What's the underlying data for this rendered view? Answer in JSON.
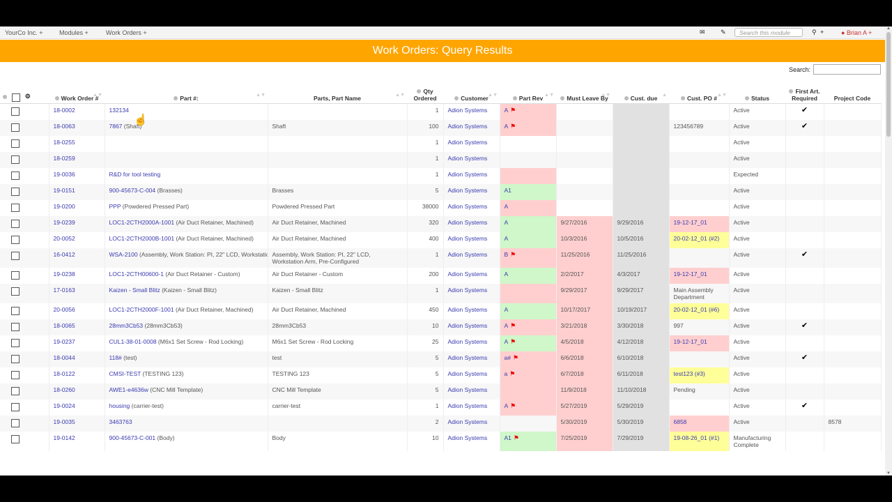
{
  "nav": {
    "company": "YourCo Inc. +",
    "modules": "Modules +",
    "work_orders": "Work Orders +",
    "search_placeholder": "Search this module",
    "search_plus": "+",
    "user": "Brian A +"
  },
  "banner": {
    "title": "Work Orders: Query Results"
  },
  "table_search": {
    "label": "Search:"
  },
  "headers": {
    "wo": "Work Order #",
    "part": "Part #:",
    "part_name": "Parts, Part Name",
    "qty": "Qty Ordered",
    "customer": "Customer",
    "part_rev": "Part Rev",
    "must_leave": "Must Leave By",
    "cust_due": "Cust. due",
    "cust_po": "Cust. PO #",
    "status": "Status",
    "first_art": "First Art. Required",
    "project": "Project Code"
  },
  "rows": [
    {
      "wo": "18-0002",
      "part": "132134",
      "part_desc": "",
      "part_name": "",
      "qty": "1",
      "customer": "Adion Systems",
      "rev": "A",
      "rev_flag": true,
      "rev_color": "red",
      "must": "",
      "due": "",
      "po": "",
      "po_link": false,
      "po_color": "",
      "status": "Active",
      "fa": "✔",
      "proj": ""
    },
    {
      "wo": "18-0063",
      "part": "7867",
      "part_desc": "(Shaft)",
      "part_name": "Shaft",
      "qty": "100",
      "customer": "Adion Systems",
      "rev": "A",
      "rev_flag": true,
      "rev_color": "red",
      "must": "",
      "due": "",
      "po": "123456789",
      "po_link": false,
      "po_color": "",
      "status": "Active",
      "fa": "✔",
      "proj": ""
    },
    {
      "wo": "18-0255",
      "part": "",
      "part_desc": "",
      "part_name": "",
      "qty": "1",
      "customer": "Adion Systems",
      "rev": "",
      "rev_flag": false,
      "rev_color": "",
      "must": "",
      "due": "",
      "po": "",
      "po_link": false,
      "po_color": "",
      "status": "Active",
      "fa": "",
      "proj": ""
    },
    {
      "wo": "18-0259",
      "part": "",
      "part_desc": "",
      "part_name": "",
      "qty": "1",
      "customer": "Adion Systems",
      "rev": "",
      "rev_flag": false,
      "rev_color": "",
      "must": "",
      "due": "",
      "po": "",
      "po_link": false,
      "po_color": "",
      "status": "Active",
      "fa": "",
      "proj": ""
    },
    {
      "wo": "19-0036",
      "part": "R&D for tool testing",
      "part_desc": "",
      "part_name": "",
      "qty": "1",
      "customer": "Adion Systems",
      "rev": "",
      "rev_flag": false,
      "rev_color": "red",
      "must": "",
      "due": "",
      "po": "",
      "po_link": false,
      "po_color": "",
      "status": "Expected",
      "fa": "",
      "proj": ""
    },
    {
      "wo": "19-0151",
      "part": "900-45673-C-004",
      "part_desc": "(Brasses)",
      "part_name": "Brasses",
      "qty": "5",
      "customer": "Adion Systems",
      "rev": "A1",
      "rev_flag": false,
      "rev_color": "green",
      "must": "",
      "due": "",
      "po": "",
      "po_link": false,
      "po_color": "",
      "status": "Active",
      "fa": "",
      "proj": ""
    },
    {
      "wo": "19-0200",
      "part": "PPP",
      "part_desc": "(Powdered Pressed Part)",
      "part_name": "Powdered Pressed Part",
      "qty": "38000",
      "customer": "Adion Systems",
      "rev": "A",
      "rev_flag": false,
      "rev_color": "red",
      "must": "",
      "due": "",
      "po": "",
      "po_link": false,
      "po_color": "",
      "status": "Active",
      "fa": "",
      "proj": ""
    },
    {
      "wo": "19-0239",
      "part": "LOC1-2CTH2000A-1001",
      "part_desc": "(Air Duct Retainer, Machined)",
      "part_name": "Air Duct Retainer, Machined",
      "qty": "320",
      "customer": "Adion Systems",
      "rev": "A",
      "rev_flag": false,
      "rev_color": "green",
      "must": "9/27/2016",
      "due": "9/29/2016",
      "po": "19-12-17_01",
      "po_link": true,
      "po_color": "red",
      "status": "Active",
      "fa": "",
      "proj": ""
    },
    {
      "wo": "20-0052",
      "part": "LOC1-2CTH2000B-1001",
      "part_desc": "(Air Duct Retainer, Machined)",
      "part_name": "Air Duct Retainer, Machined",
      "qty": "400",
      "customer": "Adion Systems",
      "rev": "A",
      "rev_flag": false,
      "rev_color": "green",
      "must": "10/3/2016",
      "due": "10/5/2016",
      "po": "20-02-12_01 (#2)",
      "po_link": true,
      "po_color": "yellow",
      "status": "Active",
      "fa": "",
      "proj": ""
    },
    {
      "wo": "16-0412",
      "part": "WSA-2100",
      "part_desc": "(Assembly, Work Station: PI, 22\" LCD, Workstation Arm, Pre-Configured)",
      "part_name": "Assembly, Work Station: PI, 22\" LCD, Workstation Arm, Pre-Configured",
      "qty": "1",
      "customer": "Adion Systems",
      "rev": "B",
      "rev_flag": true,
      "rev_color": "red",
      "must": "11/25/2016",
      "due": "11/25/2016",
      "po": "",
      "po_link": false,
      "po_color": "",
      "status": "Active",
      "fa": "✔",
      "proj": ""
    },
    {
      "wo": "19-0238",
      "part": "LOC1-2CTH00600-1",
      "part_desc": "(Air Duct Retainer - Custom)",
      "part_name": "Air Duct Retainer - Custom",
      "qty": "200",
      "customer": "Adion Systems",
      "rev": "A",
      "rev_flag": false,
      "rev_color": "green",
      "must": "2/2/2017",
      "due": "4/3/2017",
      "po": "19-12-17_01",
      "po_link": true,
      "po_color": "red",
      "status": "Active",
      "fa": "",
      "proj": ""
    },
    {
      "wo": "17-0163",
      "part": "Kaizen - Small Blitz",
      "part_desc": "(Kaizen - Small Blitz)",
      "part_name": "Kaizen - Small Blitz",
      "qty": "1",
      "customer": "Adion Systems",
      "rev": "",
      "rev_flag": false,
      "rev_color": "red",
      "must": "9/29/2017",
      "due": "9/29/2017",
      "po": "Main Assembly Department",
      "po_link": false,
      "po_color": "",
      "status": "Active",
      "fa": "",
      "proj": ""
    },
    {
      "wo": "20-0056",
      "part": "LOC1-2CTH2000F-1001",
      "part_desc": "(Air Duct Retainer, Machined)",
      "part_name": "Air Duct Retainer, Machined",
      "qty": "450",
      "customer": "Adion Systems",
      "rev": "A",
      "rev_flag": false,
      "rev_color": "green",
      "must": "10/17/2017",
      "due": "10/19/2017",
      "po": "20-02-12_01 (#6)",
      "po_link": true,
      "po_color": "yellow",
      "status": "Active",
      "fa": "",
      "proj": ""
    },
    {
      "wo": "18-0065",
      "part": "28mm3Cb53",
      "part_desc": "(28mm3Cb53)",
      "part_name": "28mm3Cb53",
      "qty": "10",
      "customer": "Adion Systems",
      "rev": "A",
      "rev_flag": true,
      "rev_color": "red",
      "must": "3/21/2018",
      "due": "3/30/2018",
      "po": "997",
      "po_link": false,
      "po_color": "",
      "status": "Active",
      "fa": "✔",
      "proj": ""
    },
    {
      "wo": "19-0237",
      "part": "CUL1-38-01-0008",
      "part_desc": "(M6x1 Set Screw - Rod Locking)",
      "part_name": "M6x1 Set Screw - Rod Locking",
      "qty": "25",
      "customer": "Adion Systems",
      "rev": "A",
      "rev_flag": true,
      "rev_color": "green",
      "must": "4/5/2018",
      "due": "4/12/2018",
      "po": "19-12-17_01",
      "po_link": true,
      "po_color": "red",
      "status": "Active",
      "fa": "",
      "proj": ""
    },
    {
      "wo": "18-0044",
      "part": "118#",
      "part_desc": "(test)",
      "part_name": "test",
      "qty": "5",
      "customer": "Adion Systems",
      "rev": "a#",
      "rev_flag": true,
      "rev_color": "red",
      "must": "6/6/2018",
      "due": "6/10/2018",
      "po": "",
      "po_link": false,
      "po_color": "",
      "status": "Active",
      "fa": "✔",
      "proj": ""
    },
    {
      "wo": "18-0122",
      "part": "CMSI-TEST",
      "part_desc": "(TESTING 123)",
      "part_name": "TESTING 123",
      "qty": "5",
      "customer": "Adion Systems",
      "rev": "a",
      "rev_flag": true,
      "rev_color": "red",
      "must": "6/7/2018",
      "due": "6/11/2018",
      "po": "test123 (#3)",
      "po_link": true,
      "po_color": "yellow",
      "status": "Active",
      "fa": "",
      "proj": ""
    },
    {
      "wo": "18-0260",
      "part": "AWE1-e4636w",
      "part_desc": "(CNC Mill Template)",
      "part_name": "CNC Mill Template",
      "qty": "5",
      "customer": "Adion Systems",
      "rev": "",
      "rev_flag": false,
      "rev_color": "red",
      "must": "11/9/2018",
      "due": "11/10/2018",
      "po": "Pending",
      "po_link": false,
      "po_color": "",
      "status": "Active",
      "fa": "",
      "proj": ""
    },
    {
      "wo": "19-0024",
      "part": "housing",
      "part_desc": "(carrier-test)",
      "part_name": "carrier-test",
      "qty": "1",
      "customer": "Adion Systems",
      "rev": "A",
      "rev_flag": true,
      "rev_color": "red",
      "must": "5/27/2019",
      "due": "5/29/2019",
      "po": "",
      "po_link": false,
      "po_color": "",
      "status": "Active",
      "fa": "✔",
      "proj": ""
    },
    {
      "wo": "19-0035",
      "part": "3463763",
      "part_desc": "",
      "part_name": "",
      "qty": "2",
      "customer": "Adion Systems",
      "rev": "",
      "rev_flag": false,
      "rev_color": "",
      "must": "5/30/2019",
      "due": "5/30/2019",
      "po": "6858",
      "po_link": true,
      "po_color": "red",
      "status": "Active",
      "fa": "",
      "proj": "8578"
    },
    {
      "wo": "19-0142",
      "part": "900-45673-C-001",
      "part_desc": "(Body)",
      "part_name": "Body",
      "qty": "10",
      "customer": "Adion Systems",
      "rev": "A1",
      "rev_flag": true,
      "rev_color": "green",
      "must": "7/25/2019",
      "due": "7/29/2019",
      "po": "19-08-26_01 (#1)",
      "po_link": true,
      "po_color": "yellow",
      "status": "Manufacturing Complete",
      "fa": "",
      "proj": ""
    }
  ]
}
